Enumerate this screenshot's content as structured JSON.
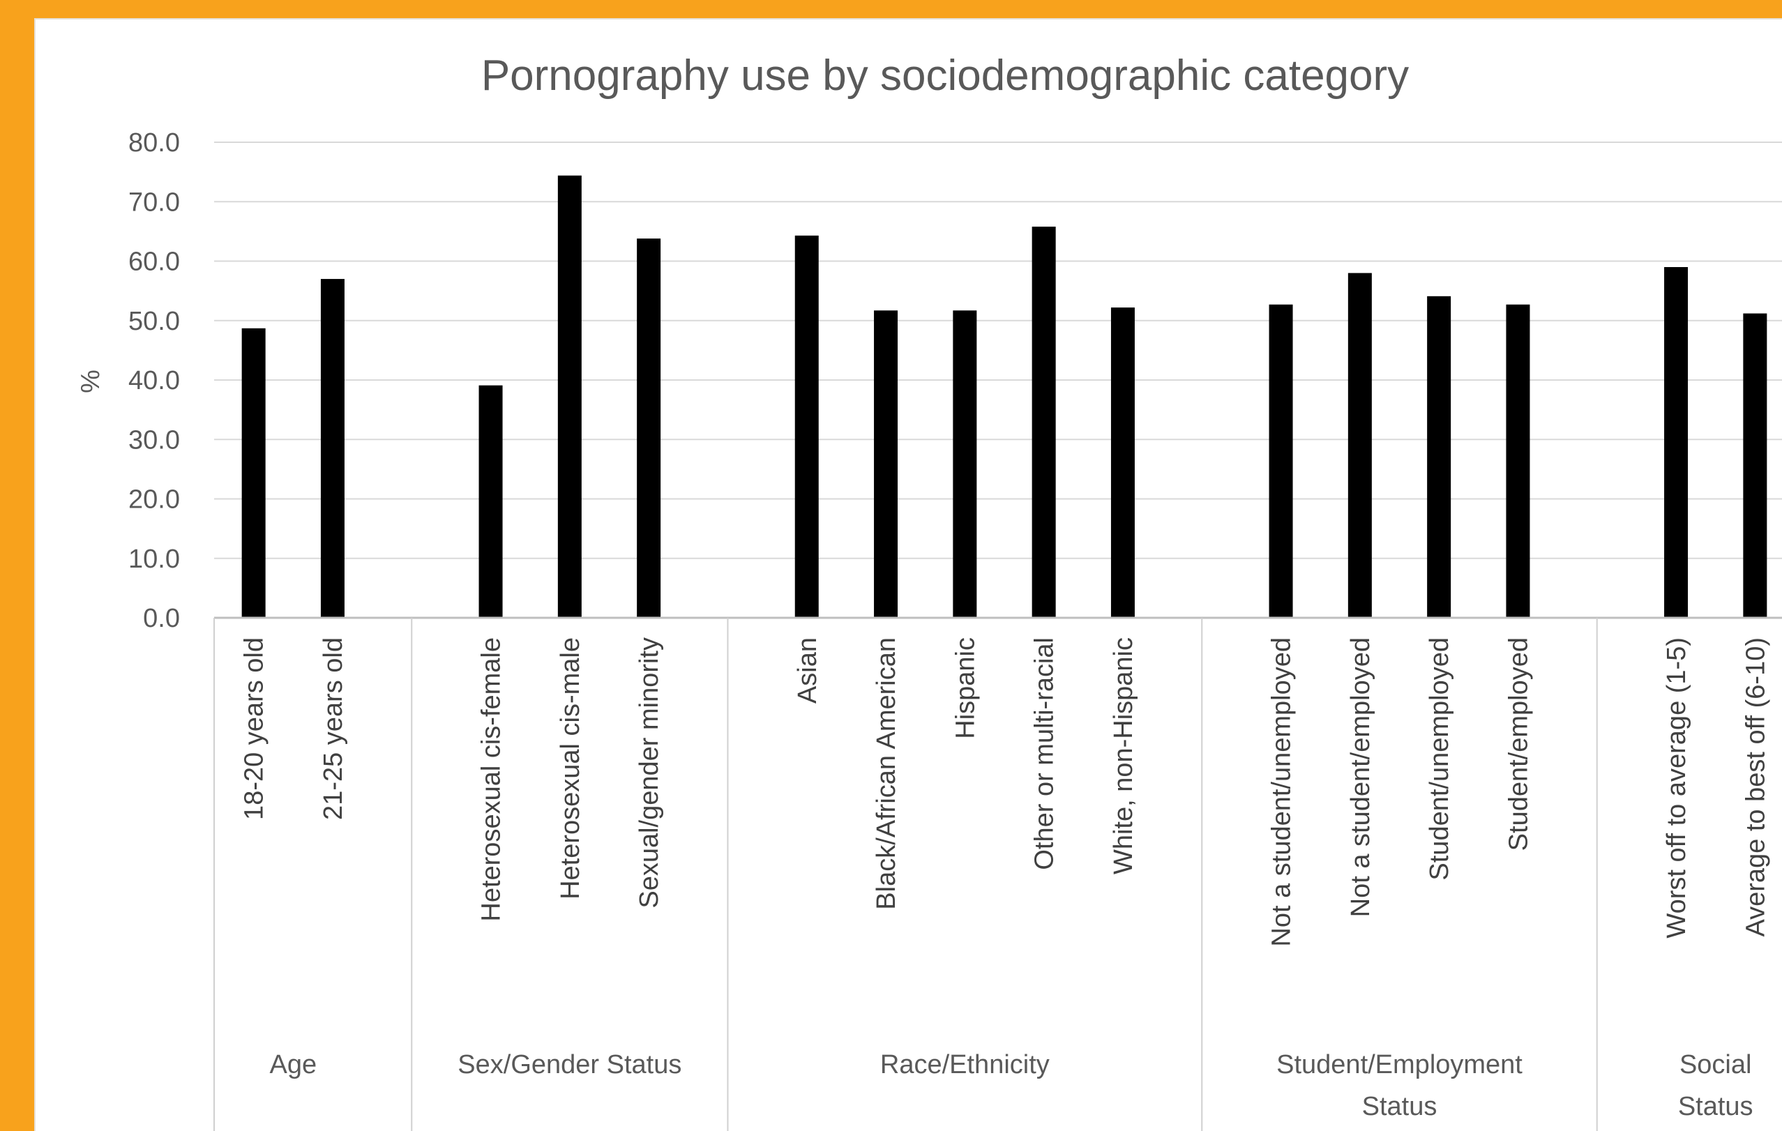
{
  "chart_data": {
    "type": "bar",
    "title": "Pornography use by sociodemographic category",
    "ylabel": "%",
    "xlabel": "",
    "ylim": [
      0,
      80
    ],
    "yticks": [
      "0.0",
      "10.0",
      "20.0",
      "30.0",
      "40.0",
      "50.0",
      "60.0",
      "70.0",
      "80.0"
    ],
    "grid": true,
    "bar_color": "#000000",
    "groups": [
      {
        "name": "Age",
        "categories": [
          "18-20 years old",
          "21-25 years old"
        ],
        "values": [
          48.7,
          57.0
        ]
      },
      {
        "name": "Sex/Gender Status",
        "categories": [
          "Heterosexual cis-female",
          "Heterosexual cis-male",
          "Sexual/gender minority"
        ],
        "values": [
          39.1,
          74.4,
          63.8
        ]
      },
      {
        "name": "Race/Ethnicity",
        "categories": [
          "Asian",
          "Black/African American",
          "Hispanic",
          "Other or multi-racial",
          "White, non-Hispanic"
        ],
        "values": [
          64.3,
          51.7,
          51.7,
          65.8,
          52.2
        ]
      },
      {
        "name": "Student/Employment Status",
        "categories": [
          "Not a student/unemployed",
          "Not a student/employed",
          "Student/unemployed",
          "Student/employed"
        ],
        "values": [
          52.7,
          58.0,
          54.1,
          52.7
        ]
      },
      {
        "name": "Social Status",
        "categories": [
          "Worst off to average (1-5)",
          "Average to best off (6-10)"
        ],
        "values": [
          59.0,
          51.2
        ]
      }
    ]
  }
}
